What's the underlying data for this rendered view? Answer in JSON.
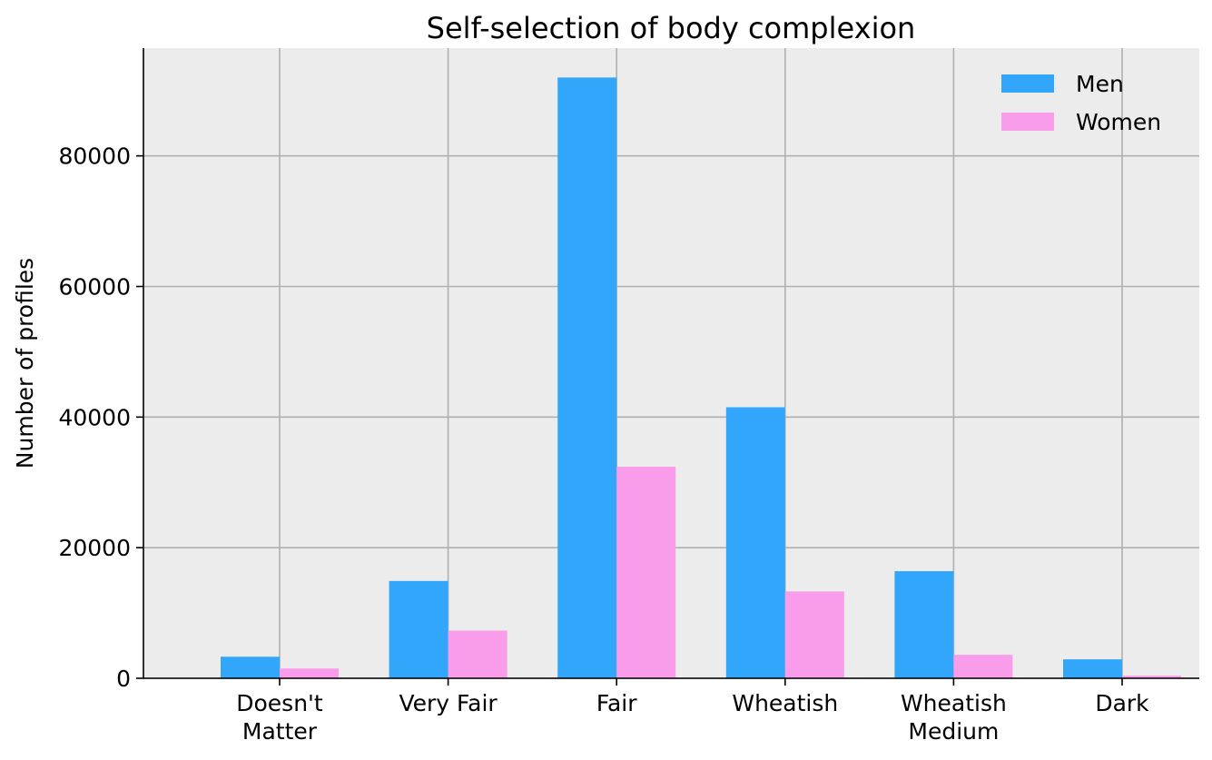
{
  "chart_data": {
    "type": "bar",
    "title": "Self-selection of body complexion",
    "xlabel": "",
    "ylabel": "Number of profiles",
    "categories": [
      [
        "Doesn't",
        "Matter"
      ],
      [
        "Very Fair"
      ],
      [
        "Fair"
      ],
      [
        "Wheatish"
      ],
      [
        "Wheatish",
        "Medium"
      ],
      [
        "Dark"
      ]
    ],
    "series": [
      {
        "name": "Men",
        "color": "#31a6fb",
        "values": [
          3300,
          14900,
          92000,
          41500,
          16400,
          2900
        ]
      },
      {
        "name": "Women",
        "color": "#f99deb",
        "values": [
          1500,
          7300,
          32400,
          13300,
          3600,
          400
        ]
      }
    ],
    "ylim": [
      0,
      96500
    ],
    "yticks": [
      0,
      20000,
      40000,
      60000,
      80000
    ],
    "ytick_labels": [
      "0",
      "20000",
      "40000",
      "60000",
      "80000"
    ],
    "grid": true,
    "legend_position": "top-right",
    "background": "#ececec",
    "grid_color": "#b0b0b0"
  }
}
